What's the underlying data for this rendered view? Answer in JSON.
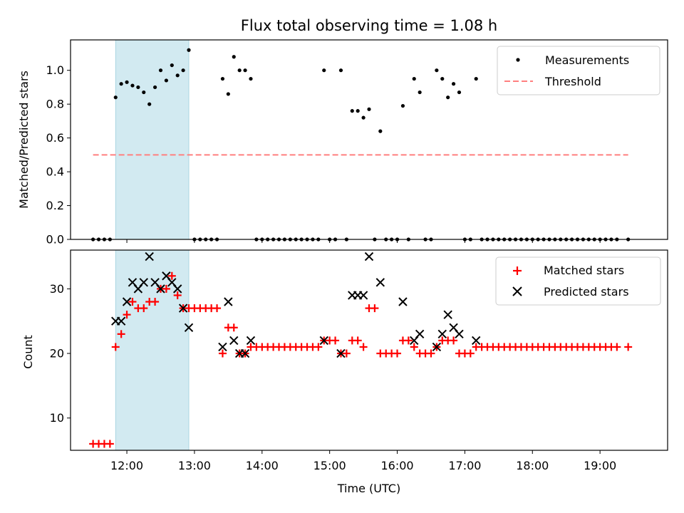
{
  "chart_data": [
    {
      "type": "scatter",
      "title": "Flux total observing time = 1.08 h",
      "xlabel": "",
      "ylabel": "Matched/Predicted stars",
      "ylim": [
        0,
        1.18
      ],
      "yticks": [
        "0.0",
        "0.2",
        "0.4",
        "0.6",
        "0.8",
        "1.0"
      ],
      "ytick_values": [
        0,
        0.2,
        0.4,
        0.6,
        0.8,
        1.0
      ],
      "grid": false,
      "legend_position": "top-right",
      "shaded_span": {
        "start": "11:50",
        "end": "12:55",
        "color": "#add8e6"
      },
      "threshold": {
        "name": "Threshold",
        "value": 0.5,
        "x_start": "11:30",
        "x_end": "19:25",
        "color": "#ff7f7f"
      },
      "series": [
        {
          "name": "Measurements",
          "color": "#000000",
          "marker": "dot",
          "points": [
            [
              "11:30",
              0
            ],
            [
              "11:35",
              0
            ],
            [
              "11:40",
              0
            ],
            [
              "11:45",
              0
            ],
            [
              "11:50",
              0.84
            ],
            [
              "11:55",
              0.92
            ],
            [
              "12:00",
              0.93
            ],
            [
              "12:05",
              0.91
            ],
            [
              "12:10",
              0.9
            ],
            [
              "12:15",
              0.87
            ],
            [
              "12:20",
              0.8
            ],
            [
              "12:25",
              0.9
            ],
            [
              "12:30",
              1.0
            ],
            [
              "12:35",
              0.94
            ],
            [
              "12:40",
              1.03
            ],
            [
              "12:45",
              0.97
            ],
            [
              "12:50",
              1.0
            ],
            [
              "12:55",
              1.12
            ],
            [
              "13:00",
              0
            ],
            [
              "13:05",
              0
            ],
            [
              "13:10",
              0
            ],
            [
              "13:15",
              0
            ],
            [
              "13:20",
              0
            ],
            [
              "13:25",
              0.95
            ],
            [
              "13:30",
              0.86
            ],
            [
              "13:35",
              1.08
            ],
            [
              "13:40",
              1.0
            ],
            [
              "13:45",
              1.0
            ],
            [
              "13:50",
              0.95
            ],
            [
              "13:55",
              0
            ],
            [
              "14:00",
              0
            ],
            [
              "14:05",
              0
            ],
            [
              "14:10",
              0
            ],
            [
              "14:15",
              0
            ],
            [
              "14:20",
              0
            ],
            [
              "14:25",
              0
            ],
            [
              "14:30",
              0
            ],
            [
              "14:35",
              0
            ],
            [
              "14:40",
              0
            ],
            [
              "14:45",
              0
            ],
            [
              "14:50",
              0
            ],
            [
              "14:55",
              1.0
            ],
            [
              "15:00",
              0
            ],
            [
              "15:05",
              0
            ],
            [
              "15:10",
              1.0
            ],
            [
              "15:15",
              0
            ],
            [
              "15:20",
              0.76
            ],
            [
              "15:25",
              0.76
            ],
            [
              "15:30",
              0.72
            ],
            [
              "15:35",
              0.77
            ],
            [
              "15:40",
              0
            ],
            [
              "15:45",
              0.64
            ],
            [
              "15:50",
              0
            ],
            [
              "15:55",
              0
            ],
            [
              "16:00",
              0
            ],
            [
              "16:05",
              0.79
            ],
            [
              "16:10",
              0
            ],
            [
              "16:15",
              0.95
            ],
            [
              "16:20",
              0.87
            ],
            [
              "16:25",
              0
            ],
            [
              "16:30",
              0
            ],
            [
              "16:35",
              1.0
            ],
            [
              "16:40",
              0.95
            ],
            [
              "16:45",
              0.84
            ],
            [
              "16:50",
              0.92
            ],
            [
              "16:55",
              0.87
            ],
            [
              "17:00",
              0
            ],
            [
              "17:05",
              0
            ],
            [
              "17:10",
              0.95
            ],
            [
              "17:15",
              0
            ],
            [
              "17:20",
              0
            ],
            [
              "17:25",
              0
            ],
            [
              "17:30",
              0
            ],
            [
              "17:35",
              0
            ],
            [
              "17:40",
              0
            ],
            [
              "17:45",
              0
            ],
            [
              "17:50",
              0
            ],
            [
              "17:55",
              0
            ],
            [
              "18:00",
              0
            ],
            [
              "18:05",
              0
            ],
            [
              "18:10",
              0
            ],
            [
              "18:15",
              0
            ],
            [
              "18:20",
              0
            ],
            [
              "18:25",
              0
            ],
            [
              "18:30",
              0
            ],
            [
              "18:35",
              0
            ],
            [
              "18:40",
              0
            ],
            [
              "18:45",
              0
            ],
            [
              "18:50",
              0
            ],
            [
              "18:55",
              0
            ],
            [
              "19:00",
              0
            ],
            [
              "19:05",
              0
            ],
            [
              "19:10",
              0
            ],
            [
              "19:15",
              0
            ],
            [
              "19:25",
              0
            ]
          ]
        }
      ]
    },
    {
      "type": "scatter",
      "title": "",
      "xlabel": "Time (UTC)",
      "ylabel": "Count",
      "ylim": [
        5,
        36
      ],
      "yticks": [
        "10",
        "20",
        "30"
      ],
      "ytick_values": [
        10,
        20,
        30
      ],
      "xlim": [
        "11:10",
        "20:00"
      ],
      "xticks": [
        "12:00",
        "13:00",
        "14:00",
        "15:00",
        "16:00",
        "17:00",
        "18:00",
        "19:00"
      ],
      "grid": false,
      "legend_position": "top-right",
      "shaded_span": {
        "start": "11:50",
        "end": "12:55",
        "color": "#add8e6"
      },
      "series": [
        {
          "name": "Matched stars",
          "color": "#ff0000",
          "marker": "plus",
          "points": [
            [
              "11:30",
              6
            ],
            [
              "11:35",
              6
            ],
            [
              "11:40",
              6
            ],
            [
              "11:45",
              6
            ],
            [
              "11:50",
              21
            ],
            [
              "11:55",
              23
            ],
            [
              "12:00",
              26
            ],
            [
              "12:05",
              28
            ],
            [
              "12:10",
              27
            ],
            [
              "12:15",
              27
            ],
            [
              "12:20",
              28
            ],
            [
              "12:25",
              28
            ],
            [
              "12:30",
              30
            ],
            [
              "12:35",
              30
            ],
            [
              "12:40",
              32
            ],
            [
              "12:45",
              29
            ],
            [
              "12:50",
              27
            ],
            [
              "12:55",
              27
            ],
            [
              "13:00",
              27
            ],
            [
              "13:05",
              27
            ],
            [
              "13:10",
              27
            ],
            [
              "13:15",
              27
            ],
            [
              "13:20",
              27
            ],
            [
              "13:25",
              20
            ],
            [
              "13:30",
              24
            ],
            [
              "13:35",
              24
            ],
            [
              "13:40",
              20
            ],
            [
              "13:45",
              20
            ],
            [
              "13:50",
              21
            ],
            [
              "13:55",
              21
            ],
            [
              "14:00",
              21
            ],
            [
              "14:05",
              21
            ],
            [
              "14:10",
              21
            ],
            [
              "14:15",
              21
            ],
            [
              "14:20",
              21
            ],
            [
              "14:25",
              21
            ],
            [
              "14:30",
              21
            ],
            [
              "14:35",
              21
            ],
            [
              "14:40",
              21
            ],
            [
              "14:45",
              21
            ],
            [
              "14:50",
              21
            ],
            [
              "14:55",
              22
            ],
            [
              "15:00",
              22
            ],
            [
              "15:05",
              22
            ],
            [
              "15:10",
              20
            ],
            [
              "15:15",
              20
            ],
            [
              "15:20",
              22
            ],
            [
              "15:25",
              22
            ],
            [
              "15:30",
              21
            ],
            [
              "15:35",
              27
            ],
            [
              "15:40",
              27
            ],
            [
              "15:45",
              20
            ],
            [
              "15:50",
              20
            ],
            [
              "15:55",
              20
            ],
            [
              "16:00",
              20
            ],
            [
              "16:05",
              22
            ],
            [
              "16:10",
              22
            ],
            [
              "16:15",
              21
            ],
            [
              "16:20",
              20
            ],
            [
              "16:25",
              20
            ],
            [
              "16:30",
              20
            ],
            [
              "16:35",
              21
            ],
            [
              "16:40",
              22
            ],
            [
              "16:45",
              22
            ],
            [
              "16:50",
              22
            ],
            [
              "16:55",
              20
            ],
            [
              "17:00",
              20
            ],
            [
              "17:05",
              20
            ],
            [
              "17:10",
              21
            ],
            [
              "17:15",
              21
            ],
            [
              "17:20",
              21
            ],
            [
              "17:25",
              21
            ],
            [
              "17:30",
              21
            ],
            [
              "17:35",
              21
            ],
            [
              "17:40",
              21
            ],
            [
              "17:45",
              21
            ],
            [
              "17:50",
              21
            ],
            [
              "17:55",
              21
            ],
            [
              "18:00",
              21
            ],
            [
              "18:05",
              21
            ],
            [
              "18:10",
              21
            ],
            [
              "18:15",
              21
            ],
            [
              "18:20",
              21
            ],
            [
              "18:25",
              21
            ],
            [
              "18:30",
              21
            ],
            [
              "18:35",
              21
            ],
            [
              "18:40",
              21
            ],
            [
              "18:45",
              21
            ],
            [
              "18:50",
              21
            ],
            [
              "18:55",
              21
            ],
            [
              "19:00",
              21
            ],
            [
              "19:05",
              21
            ],
            [
              "19:10",
              21
            ],
            [
              "19:15",
              21
            ],
            [
              "19:25",
              21
            ]
          ]
        },
        {
          "name": "Predicted stars",
          "color": "#000000",
          "marker": "x",
          "points": [
            [
              "11:50",
              25
            ],
            [
              "11:55",
              25
            ],
            [
              "12:00",
              28
            ],
            [
              "12:05",
              31
            ],
            [
              "12:10",
              30
            ],
            [
              "12:15",
              31
            ],
            [
              "12:20",
              35
            ],
            [
              "12:25",
              31
            ],
            [
              "12:30",
              30
            ],
            [
              "12:35",
              32
            ],
            [
              "12:40",
              31
            ],
            [
              "12:45",
              30
            ],
            [
              "12:50",
              27
            ],
            [
              "12:55",
              24
            ],
            [
              "13:25",
              21
            ],
            [
              "13:30",
              28
            ],
            [
              "13:35",
              22
            ],
            [
              "13:40",
              20
            ],
            [
              "13:45",
              20
            ],
            [
              "13:50",
              22
            ],
            [
              "14:55",
              22
            ],
            [
              "15:10",
              20
            ],
            [
              "15:20",
              29
            ],
            [
              "15:25",
              29
            ],
            [
              "15:30",
              29
            ],
            [
              "15:35",
              35
            ],
            [
              "15:45",
              31
            ],
            [
              "16:05",
              28
            ],
            [
              "16:15",
              22
            ],
            [
              "16:20",
              23
            ],
            [
              "16:35",
              21
            ],
            [
              "16:40",
              23
            ],
            [
              "16:45",
              26
            ],
            [
              "16:50",
              24
            ],
            [
              "16:55",
              23
            ],
            [
              "17:10",
              22
            ]
          ]
        }
      ]
    }
  ]
}
